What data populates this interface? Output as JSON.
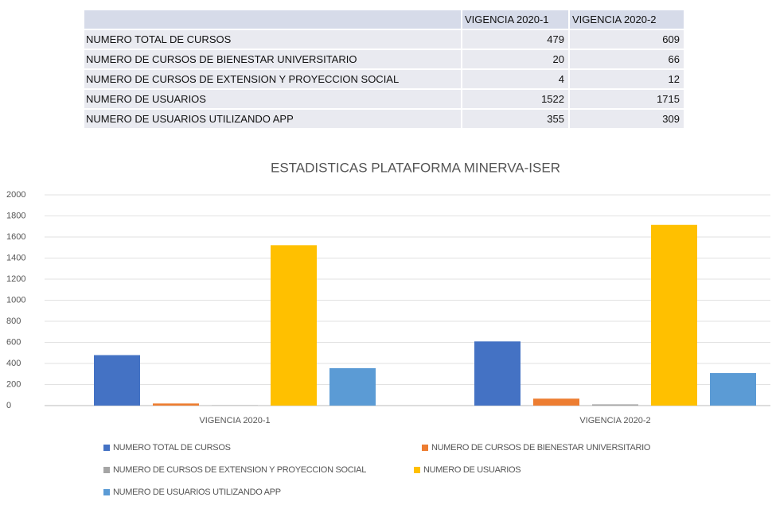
{
  "table": {
    "header": [
      "VIGENCIA 2020-1",
      "VIGENCIA 2020-2"
    ],
    "rows": [
      [
        "NUMERO TOTAL DE CURSOS",
        479,
        609
      ],
      [
        "NUMERO DE CURSOS DE BIENESTAR UNIVERSITARIO",
        20,
        66
      ],
      [
        "NUMERO DE CURSOS DE EXTENSION Y PROYECCION SOCIAL",
        4,
        12
      ],
      [
        "NUMERO DE USUARIOS",
        1522,
        1715
      ],
      [
        "NUMERO DE USUARIOS UTILIZANDO APP",
        355,
        309
      ]
    ]
  },
  "chart_data": {
    "type": "bar",
    "title": "ESTADISTICAS PLATAFORMA MINERVA-ISER",
    "categories": [
      "VIGENCIA 2020-1",
      "VIGENCIA 2020-2"
    ],
    "series": [
      {
        "name": "NUMERO TOTAL DE CURSOS",
        "color": "#4472c4",
        "values": [
          479,
          609
        ]
      },
      {
        "name": "NUMERO DE CURSOS DE BIENESTAR UNIVERSITARIO",
        "color": "#ed7d31",
        "values": [
          20,
          66
        ]
      },
      {
        "name": "NUMERO DE CURSOS DE EXTENSION Y PROYECCION SOCIAL",
        "color": "#a5a5a5",
        "values": [
          4,
          12
        ]
      },
      {
        "name": "NUMERO DE USUARIOS",
        "color": "#ffc000",
        "values": [
          1522,
          1715
        ]
      },
      {
        "name": "NUMERO DE USUARIOS UTILIZANDO APP",
        "color": "#5b9bd5",
        "values": [
          355,
          309
        ]
      }
    ],
    "ylim": [
      0,
      2000
    ],
    "yticks": [
      0,
      200,
      400,
      600,
      800,
      1000,
      1200,
      1400,
      1600,
      1800,
      2000
    ],
    "grid": true,
    "legend": "bottom"
  }
}
